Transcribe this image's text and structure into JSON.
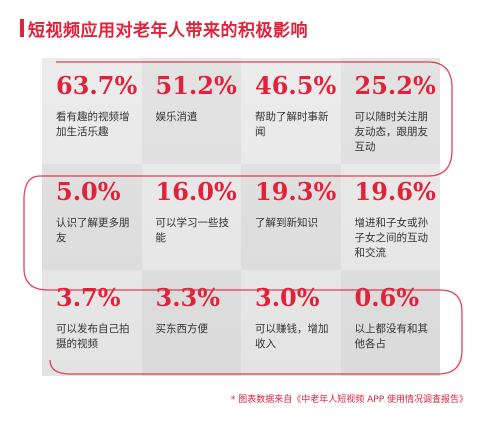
{
  "chart_data": {
    "type": "table",
    "title": "短视频应用对老年人带来的积极影响",
    "items": [
      {
        "value": "63.7%",
        "label": "看有趣的视频增加生活乐趣"
      },
      {
        "value": "51.2%",
        "label": "娱乐消遣"
      },
      {
        "value": "46.5%",
        "label": "帮助了解时事新闻"
      },
      {
        "value": "25.2%",
        "label": "可以随时关注朋友动态，跟朋友互动"
      },
      {
        "value": "5.0%",
        "label": "认识了解更多朋友"
      },
      {
        "value": "16.0%",
        "label": "可以学习一些技能"
      },
      {
        "value": "19.3%",
        "label": "了解到新知识"
      },
      {
        "value": "19.6%",
        "label": "增进和子女或孙子女之间的互动和交流"
      },
      {
        "value": "3.7%",
        "label": "可以发布自己拍摄的视频"
      },
      {
        "value": "3.3%",
        "label": "买东西方便"
      },
      {
        "value": "3.0%",
        "label": "可以赚钱，增加收入"
      },
      {
        "value": "0.6%",
        "label": "以上都没有和其他各占"
      }
    ],
    "footnote": "* 图表数据来自《中老年人短视频 APP 使用情况调查报告》",
    "colors": {
      "accent": "#e0233a",
      "panel": "#e8e8e8"
    }
  }
}
